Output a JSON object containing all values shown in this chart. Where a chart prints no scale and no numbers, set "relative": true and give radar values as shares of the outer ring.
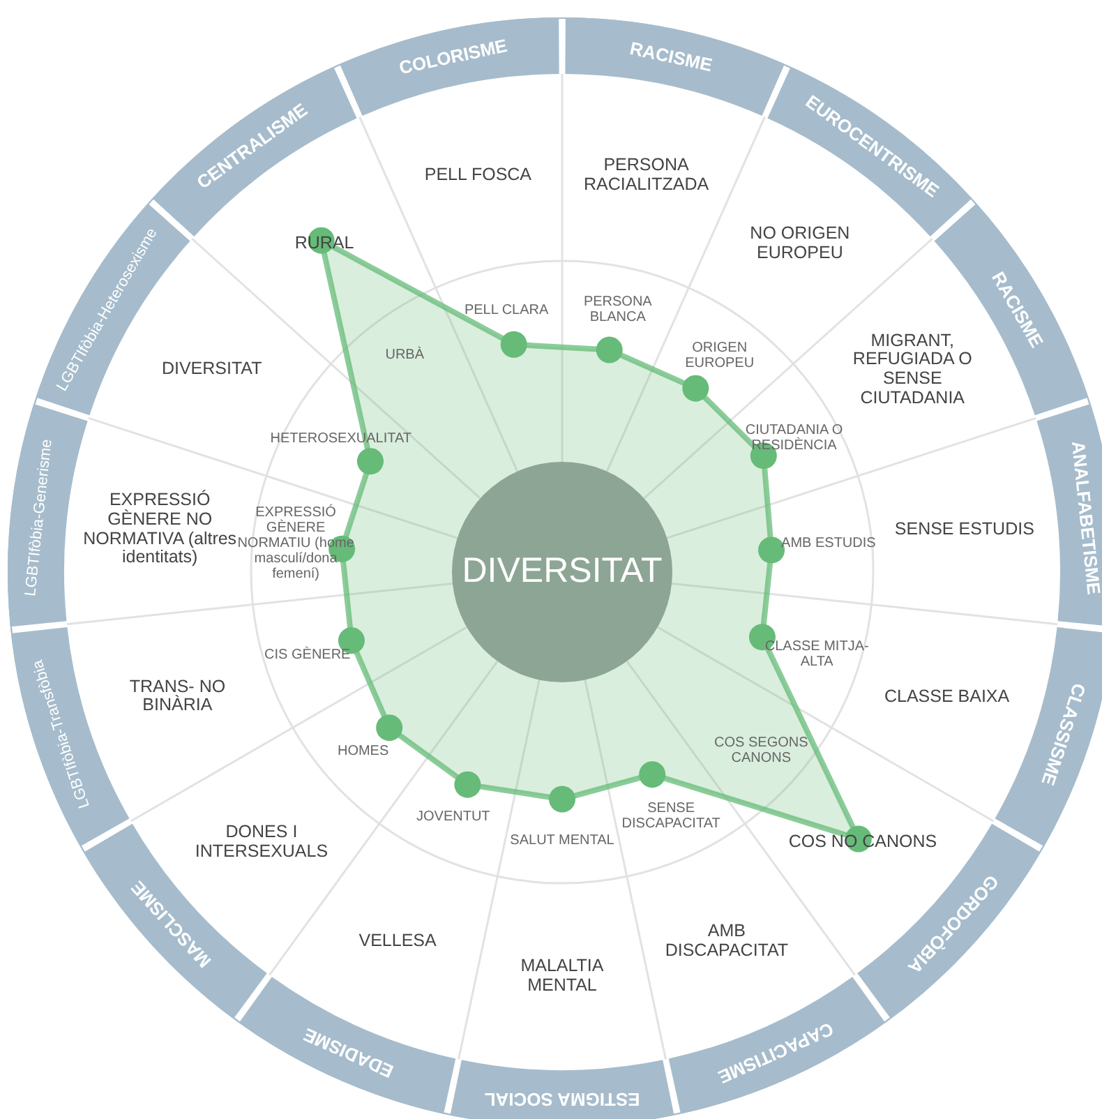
{
  "chart_data": {
    "type": "radar",
    "relative": true,
    "marker": "circle",
    "categories": [
      "RACISME",
      "EUROCENTRISME",
      "RACISME",
      "ANALFABETISME",
      "CLASSISME",
      "GORDOFÒBIA",
      "CAPACITISME",
      "ESTIGMA SOCIAL",
      "EDADISME",
      "MASCLISME",
      "LGBTIfòbia-Transfòbia",
      "LGBTIfòbia-Generisme",
      "LGBTIfòbia-Heterosexisme",
      "CENTRALISME",
      "COLORISME"
    ],
    "series": [
      {
        "color": "#66bb78",
        "values": [
          0.41,
          0.41,
          0.42,
          0.38,
          0.38,
          0.72,
          0.4,
          0.41,
          0.42,
          0.42,
          0.4,
          0.4,
          0.4,
          0.74,
          0.42
        ]
      }
    ],
    "annotations": [
      "DIVERSITAT",
      "PERSONA RACIALITZADA",
      "PERSONA BLANCA",
      "NO ORIGEN EUROPEU",
      "ORIGEN EUROPEU",
      "MIGRANT, REFUGIADA O SENSE CIUTADANIA",
      "CIUTADANIA O RESIDÈNCIA",
      "SENSE ESTUDIS",
      "AMB ESTUDIS",
      "CLASSE BAIXA",
      "CLASSE MITJA-ALTA",
      "COS NO CANONS",
      "COS SEGONS CANONS",
      "AMB DISCAPACITAT",
      "SENSE DISCAPACITAT",
      "MALALTIA MENTAL",
      "SALUT MENTAL",
      "VELLESA",
      "JOVENTUT",
      "DONES I INTERSEXUALS",
      "HOMES",
      "TRANS- NO BINÀRIA",
      "CIS GÈNERE",
      "EXPRESSIÓ GÈNERE NO NORMATIVA (altres identitats)",
      "EXPRESSIÓ GÈNERE NORMATIU (home masculí/dona femení)",
      "DIVERSITAT",
      "HETEROSEXUALITAT",
      "RURAL",
      "URBÀ",
      "PELL FOSCA",
      "PELL CLARA"
    ]
  }
}
